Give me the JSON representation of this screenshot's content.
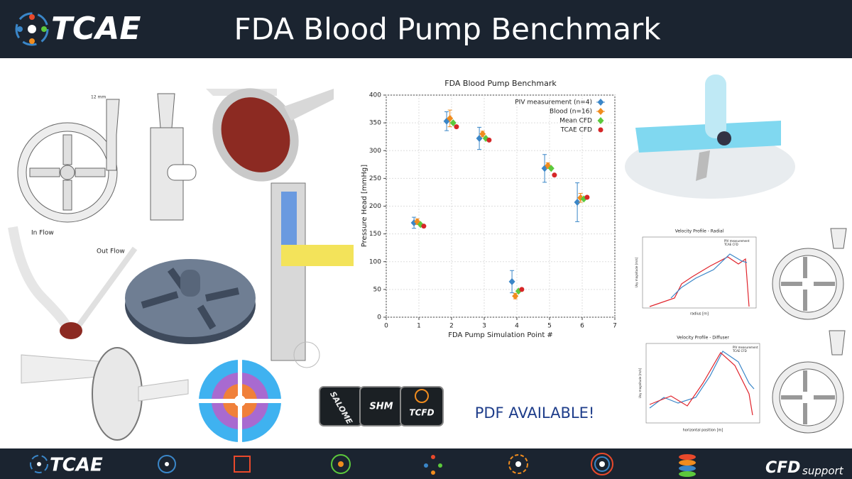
{
  "header": {
    "logo": "TCAE",
    "title": "FDA Blood Pump Benchmark"
  },
  "drawing_labels": {
    "in_flow": "In Flow",
    "out_flow": "Out Flow"
  },
  "chart_data": {
    "type": "scatter",
    "title": "FDA Blood Pump Benchmark",
    "xlabel": "FDA Pump Simulation Point #",
    "ylabel": "Pressure Head [mmHg]",
    "xlim": [
      0,
      7
    ],
    "xticks": [
      0,
      1,
      2,
      3,
      4,
      5,
      6,
      7
    ],
    "ylim": [
      0,
      400
    ],
    "yticks": [
      0,
      50,
      100,
      150,
      200,
      250,
      300,
      350,
      400
    ],
    "grid": true,
    "legend": "upper right",
    "series": [
      {
        "name": "PIV measurement (n=4)",
        "color": "#3a86c8",
        "marker": "diamond",
        "x": [
          0.85,
          1.85,
          2.85,
          3.85,
          4.85,
          5.85
        ],
        "values": [
          170,
          353,
          322,
          64,
          268,
          207
        ],
        "errors": [
          10,
          17,
          20,
          20,
          25,
          35
        ]
      },
      {
        "name": "Blood (n=16)",
        "color": "#f08c1e",
        "marker": "diamond",
        "x": [
          0.95,
          1.95,
          2.95,
          3.95,
          4.95,
          5.95
        ],
        "values": [
          172,
          358,
          330,
          38,
          273,
          215
        ],
        "errors": [
          5,
          15,
          5,
          5,
          5,
          8
        ]
      },
      {
        "name": "Mean CFD",
        "color": "#5cc93c",
        "marker": "diamond",
        "x": [
          1.05,
          2.05,
          3.05,
          4.05,
          5.05,
          6.05
        ],
        "values": [
          167,
          350,
          322,
          47,
          268,
          213
        ]
      },
      {
        "name": "TCAE CFD",
        "color": "#d62728",
        "marker": "circle",
        "x": [
          1.15,
          2.15,
          3.15,
          4.15,
          5.15,
          6.15
        ],
        "values": [
          164,
          343,
          319,
          50,
          256,
          216
        ]
      }
    ]
  },
  "profiles": [
    {
      "title": "Velocity Profile - Radial",
      "xlabel": "radius [m]",
      "ylabel": "Uxy magnitude [m/s]",
      "legend": [
        "PIV measurement",
        "TCAE CFD"
      ]
    },
    {
      "title": "Velocity Profile - Diffuser",
      "xlabel": "horizontal position [m]",
      "ylabel": "Uxy magnitude [m/s]",
      "legend": [
        "PIV measurement",
        "TCAE CFD"
      ]
    }
  ],
  "puzzle": [
    "SALOME",
    "SHM",
    "TCFD"
  ],
  "pdf_notice": "PDF AVAILABLE!",
  "footer": {
    "logo": "TCAE",
    "brand": "CFD",
    "brand_suffix": "support"
  }
}
